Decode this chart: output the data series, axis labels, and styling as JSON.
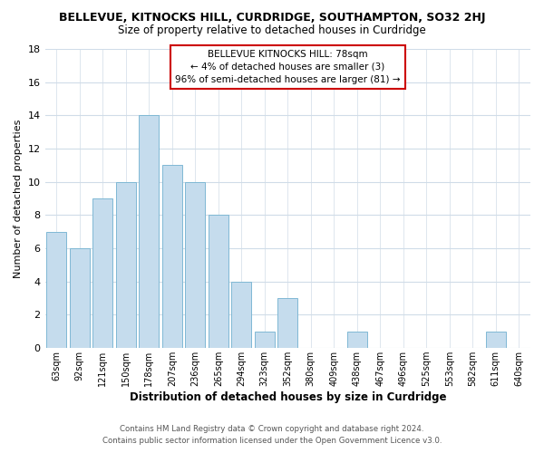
{
  "title": "BELLEVUE, KITNOCKS HILL, CURDRIDGE, SOUTHAMPTON, SO32 2HJ",
  "subtitle": "Size of property relative to detached houses in Curdridge",
  "xlabel": "Distribution of detached houses by size in Curdridge",
  "ylabel": "Number of detached properties",
  "bar_color": "#c5dced",
  "bar_edge_color": "#7fb8d4",
  "categories": [
    "63sqm",
    "92sqm",
    "121sqm",
    "150sqm",
    "178sqm",
    "207sqm",
    "236sqm",
    "265sqm",
    "294sqm",
    "323sqm",
    "352sqm",
    "380sqm",
    "409sqm",
    "438sqm",
    "467sqm",
    "496sqm",
    "525sqm",
    "553sqm",
    "582sqm",
    "611sqm",
    "640sqm"
  ],
  "values": [
    7,
    6,
    9,
    10,
    14,
    11,
    10,
    8,
    4,
    1,
    3,
    0,
    0,
    1,
    0,
    0,
    0,
    0,
    0,
    1,
    0
  ],
  "ylim": [
    0,
    18
  ],
  "yticks": [
    0,
    2,
    4,
    6,
    8,
    10,
    12,
    14,
    16,
    18
  ],
  "annotation_title": "BELLEVUE KITNOCKS HILL: 78sqm",
  "annotation_line1": "← 4% of detached houses are smaller (3)",
  "annotation_line2": "96% of semi-detached houses are larger (81) →",
  "annotation_box_color": "#ffffff",
  "annotation_box_edge": "#cc0000",
  "footer_line1": "Contains HM Land Registry data © Crown copyright and database right 2024.",
  "footer_line2": "Contains public sector information licensed under the Open Government Licence v3.0.",
  "background_color": "#ffffff",
  "plot_background": "#ffffff",
  "grid_color": "#d0dce8"
}
